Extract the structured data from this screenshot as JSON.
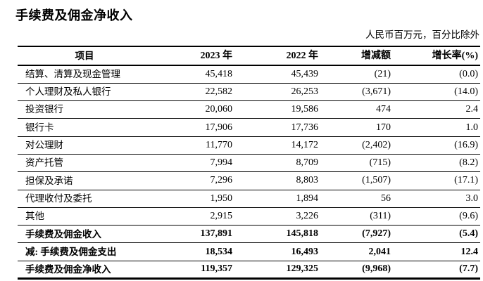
{
  "title": "手续费及佣金净收入",
  "unit_note": "人民币百万元，百分比除外",
  "colors": {
    "text": "#000000",
    "border": "#000000",
    "background": "#ffffff"
  },
  "table": {
    "headers": [
      "项目",
      "2023 年",
      "2022 年",
      "增减额",
      "增长率(%)"
    ],
    "rows": [
      {
        "label": "结算、清算及现金管理",
        "y2023": "45,418",
        "y2022": "45,439",
        "change": "(21)",
        "growth": "(0.0)",
        "emphasis": false
      },
      {
        "label": "个人理财及私人银行",
        "y2023": "22,582",
        "y2022": "26,253",
        "change": "(3,671)",
        "growth": "(14.0)",
        "emphasis": false
      },
      {
        "label": "投资银行",
        "y2023": "20,060",
        "y2022": "19,586",
        "change": "474",
        "growth": "2.4",
        "emphasis": false
      },
      {
        "label": "银行卡",
        "y2023": "17,906",
        "y2022": "17,736",
        "change": "170",
        "growth": "1.0",
        "emphasis": false
      },
      {
        "label": "对公理财",
        "y2023": "11,770",
        "y2022": "14,172",
        "change": "(2,402)",
        "growth": "(16.9)",
        "emphasis": false
      },
      {
        "label": "资产托管",
        "y2023": "7,994",
        "y2022": "8,709",
        "change": "(715)",
        "growth": "(8.2)",
        "emphasis": false
      },
      {
        "label": "担保及承诺",
        "y2023": "7,296",
        "y2022": "8,803",
        "change": "(1,507)",
        "growth": "(17.1)",
        "emphasis": false
      },
      {
        "label": "代理收付及委托",
        "y2023": "1,950",
        "y2022": "1,894",
        "change": "56",
        "growth": "3.0",
        "emphasis": false
      },
      {
        "label": "其他",
        "y2023": "2,915",
        "y2022": "3,226",
        "change": "(311)",
        "growth": "(9.6)",
        "emphasis": false
      },
      {
        "label": "手续费及佣金收入",
        "y2023": "137,891",
        "y2022": "145,818",
        "change": "(7,927)",
        "growth": "(5.4)",
        "emphasis": true
      },
      {
        "label": "减: 手续费及佣金支出",
        "y2023": "18,534",
        "y2022": "16,493",
        "change": "2,041",
        "growth": "12.4",
        "emphasis": true
      },
      {
        "label": "手续费及佣金净收入",
        "y2023": "119,357",
        "y2022": "129,325",
        "change": "(9,968)",
        "growth": "(7.7)",
        "emphasis": true
      }
    ]
  }
}
